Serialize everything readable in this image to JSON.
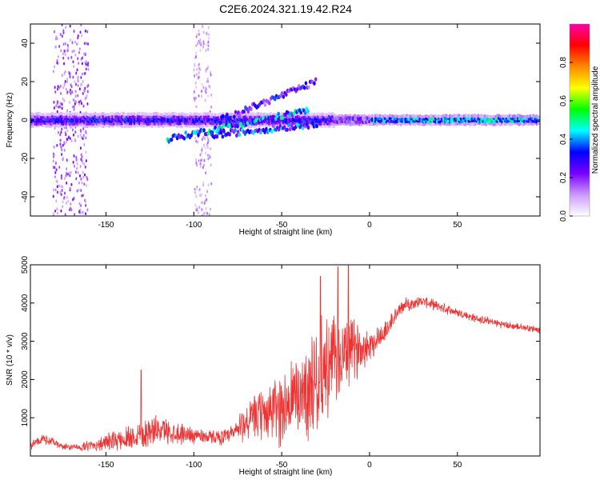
{
  "figure": {
    "title": "C2E6.2024.321.19.42.R24"
  },
  "chart_data": [
    {
      "type": "heatmap",
      "xlabel": "Height of straight line (km)",
      "ylabel": "Frequency (Hz)",
      "xlim": [
        -193,
        97
      ],
      "ylim": [
        -50,
        50
      ],
      "x_ticks": [
        -150,
        -100,
        -50,
        0,
        50
      ],
      "y_ticks": [
        -40,
        -20,
        0,
        20,
        40
      ],
      "colorbar": {
        "label": "Normalized spectral amplitude",
        "range": [
          0.0,
          1.0
        ],
        "ticks": [
          "0.0",
          "0.2",
          "0.4",
          "0.6",
          "0.8"
        ],
        "colormap": [
          "#ffffff",
          "#cc99ff",
          "#7700ff",
          "#0000ff",
          "#00ffff",
          "#00ff00",
          "#ffff00",
          "#ff8800",
          "#ff0000",
          "#ff00aa"
        ]
      },
      "features": [
        {
          "x": [
            -193,
            -20
          ],
          "freq_center": 0,
          "freq_width": 6,
          "amplitude": 0.35
        },
        {
          "x": [
            -20,
            97
          ],
          "freq_center": 0,
          "freq_width": 4,
          "amplitude": 0.55
        },
        {
          "x": [
            -20,
            0
          ],
          "freq_center": 0,
          "freq_width": 2,
          "amplitude": 0.9
        },
        {
          "x": [
            -180,
            -160
          ],
          "freq_center": 0,
          "freq_width": 100,
          "amplitude": 0.15
        },
        {
          "x": [
            -100,
            -90
          ],
          "freq_center": 0,
          "freq_width": 100,
          "amplitude": 0.1
        },
        {
          "x_start": -115,
          "x_end": -35,
          "freq_start": -10,
          "freq_end": 5,
          "amplitude": 0.35
        },
        {
          "x_start": -85,
          "x_end": -30,
          "freq_start": 0,
          "freq_end": 20,
          "amplitude": 0.25
        },
        {
          "x_start": -90,
          "x_end": -30,
          "freq_start": -8,
          "freq_end": -2,
          "amplitude": 0.3
        }
      ]
    },
    {
      "type": "line",
      "xlabel": "Height of straight line (km)",
      "ylabel": "SNR (10 * v/v)",
      "xlim": [
        -193,
        97
      ],
      "ylim": [
        0,
        5000
      ],
      "x_ticks": [
        -150,
        -100,
        -50,
        0,
        50
      ],
      "y_ticks": [
        1000,
        2000,
        3000,
        4000,
        5000
      ],
      "color": "#ee3333",
      "series": [
        {
          "x": [
            -193,
            -185,
            -180,
            -175,
            -165,
            -150,
            -140,
            -130,
            -120,
            -110,
            -100,
            -90,
            -80,
            -75,
            -70,
            -65,
            -60,
            -55,
            -50,
            -45,
            -40,
            -35,
            -30,
            -25,
            -20,
            -15,
            -10,
            -5,
            0,
            5,
            10,
            15,
            20,
            25,
            30,
            40,
            50,
            60,
            70,
            80,
            90,
            97
          ],
          "mean": [
            300,
            450,
            350,
            250,
            220,
            350,
            450,
            600,
            700,
            600,
            550,
            500,
            500,
            700,
            900,
            1000,
            1100,
            1200,
            1250,
            1400,
            1600,
            1800,
            2000,
            2300,
            2500,
            2600,
            2750,
            2850,
            2900,
            3100,
            3300,
            3700,
            3950,
            4000,
            4050,
            3900,
            3750,
            3600,
            3500,
            3400,
            3350,
            3300
          ],
          "noise": [
            150,
            150,
            120,
            100,
            100,
            250,
            350,
            500,
            400,
            350,
            250,
            200,
            250,
            450,
            600,
            700,
            800,
            1000,
            1200,
            1300,
            1400,
            1500,
            1600,
            1600,
            1400,
            1200,
            1000,
            700,
            500,
            400,
            350,
            250,
            200,
            180,
            160,
            150,
            140,
            130,
            120,
            110,
            100,
            100
          ],
          "peaks": [
            [
              -130,
              2250
            ],
            [
              -28,
              4700
            ],
            [
              -18,
              4950
            ],
            [
              -12,
              5000
            ]
          ]
        }
      ]
    }
  ]
}
